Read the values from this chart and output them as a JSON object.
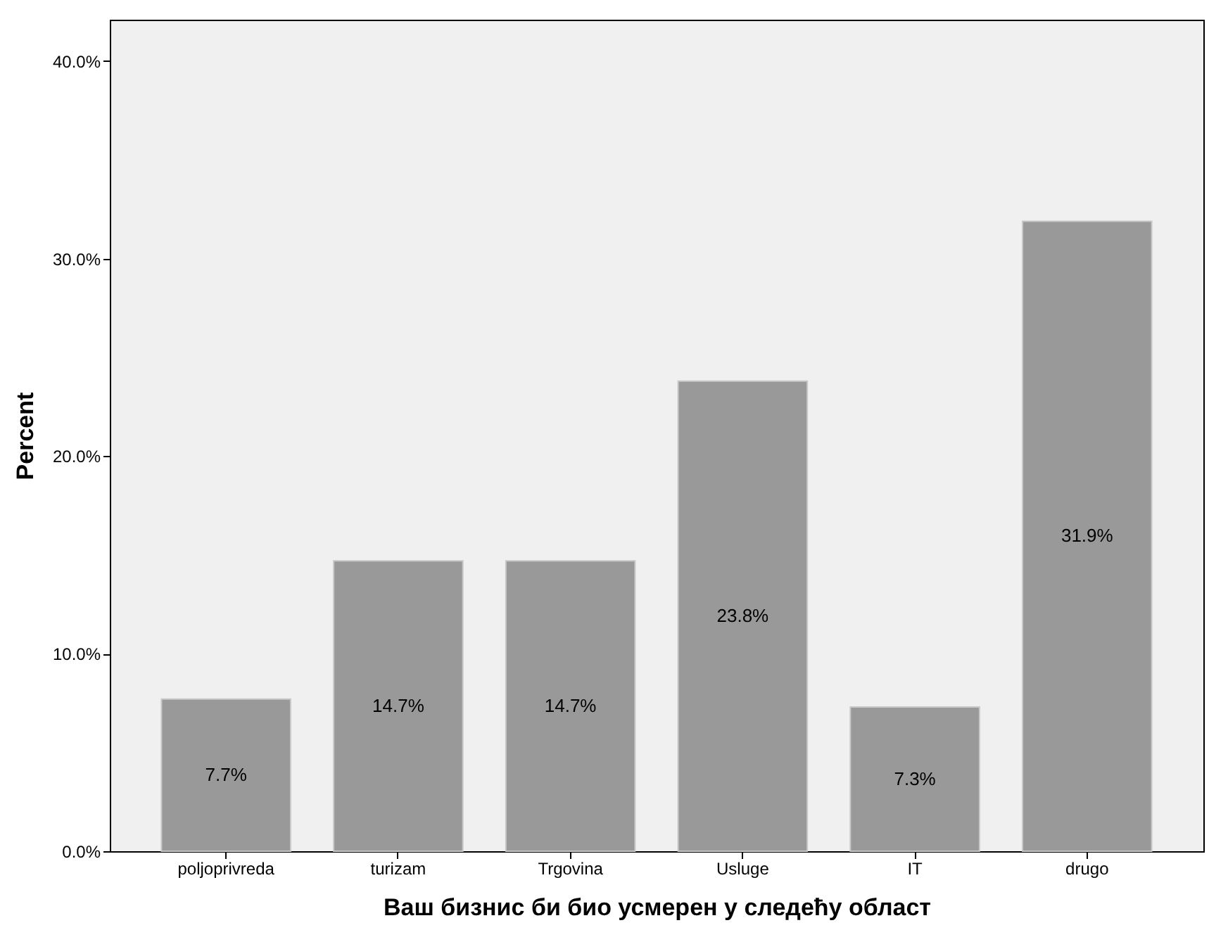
{
  "chart_data": {
    "type": "bar",
    "xlabel": "Ваш бизнис би био усмерен у следећу област",
    "ylabel": "Percent",
    "categories": [
      "poljoprivreda",
      "turizam",
      "Trgovina",
      "Usluge",
      "IT",
      "drugo"
    ],
    "values": [
      7.7,
      14.7,
      14.7,
      23.8,
      7.3,
      31.9
    ],
    "value_labels": [
      "7.7%",
      "14.7%",
      "14.7%",
      "23.8%",
      "7.3%",
      "31.9%"
    ],
    "color": "#999999",
    "ylim": [
      0,
      42.1
    ],
    "yticks": [
      {
        "value": 0,
        "label": "0.0%"
      },
      {
        "value": 10,
        "label": "10.0%"
      },
      {
        "value": 20,
        "label": "20.0%"
      },
      {
        "value": 30,
        "label": "30.0%"
      },
      {
        "value": 40,
        "label": "40.0%"
      }
    ],
    "grid": false
  }
}
